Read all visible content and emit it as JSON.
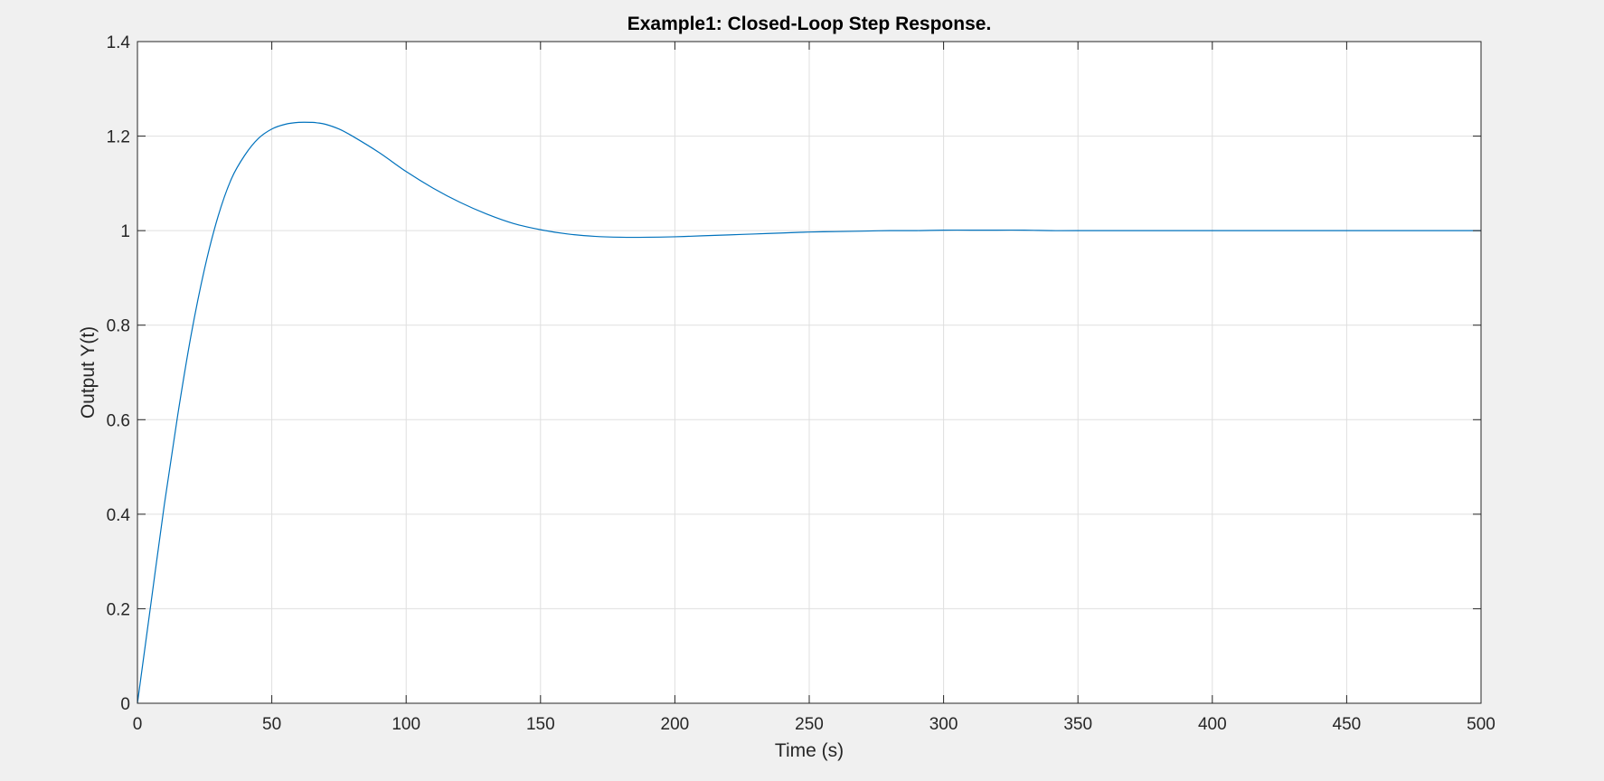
{
  "chart_data": {
    "type": "line",
    "title": "Example1: Closed-Loop Step Response.",
    "xlabel": "Time (s)",
    "ylabel": "Output Y(t)",
    "xlim": [
      0,
      500
    ],
    "ylim": [
      0,
      1.4
    ],
    "xticks": [
      0,
      50,
      100,
      150,
      200,
      250,
      300,
      350,
      400,
      450,
      500
    ],
    "xtick_labels": [
      "0",
      "50",
      "100",
      "150",
      "200",
      "250",
      "300",
      "350",
      "400",
      "450",
      "500"
    ],
    "yticks": [
      0,
      0.2,
      0.4,
      0.6,
      0.8,
      1.0,
      1.2,
      1.4
    ],
    "ytick_labels": [
      "0",
      "0.2",
      "0.4",
      "0.6",
      "0.8",
      "1",
      "1.2",
      "1.4"
    ],
    "grid": true,
    "legend": "none",
    "colors": {
      "figure_background": "#f0f0f0",
      "axes_background": "#ffffff",
      "axes_edge": "#262626",
      "grid": "#dfdfdf",
      "series": "#0072bd"
    },
    "series": [
      {
        "x": [
          0,
          5,
          10,
          15,
          20,
          25,
          30,
          35,
          40,
          45,
          50,
          55,
          60,
          65,
          67,
          70,
          75,
          80,
          90,
          100,
          110,
          120,
          130,
          140,
          150,
          160,
          170,
          180,
          190,
          200,
          210,
          220,
          230,
          240,
          250,
          260,
          270,
          280,
          290,
          300,
          310,
          320,
          330,
          340,
          350,
          400,
          450,
          500
        ],
        "y": [
          0,
          0.21,
          0.42,
          0.61,
          0.78,
          0.92,
          1.03,
          1.11,
          1.16,
          1.195,
          1.215,
          1.225,
          1.229,
          1.229,
          1.228,
          1.225,
          1.215,
          1.2,
          1.165,
          1.125,
          1.09,
          1.06,
          1.035,
          1.015,
          1.002,
          0.993,
          0.988,
          0.986,
          0.986,
          0.987,
          0.989,
          0.991,
          0.993,
          0.995,
          0.997,
          0.998,
          0.999,
          1.0,
          1.0,
          1.001,
          1.001,
          1.001,
          1.001,
          1.0,
          1.0,
          1.0,
          1.0,
          1.0
        ]
      }
    ]
  }
}
